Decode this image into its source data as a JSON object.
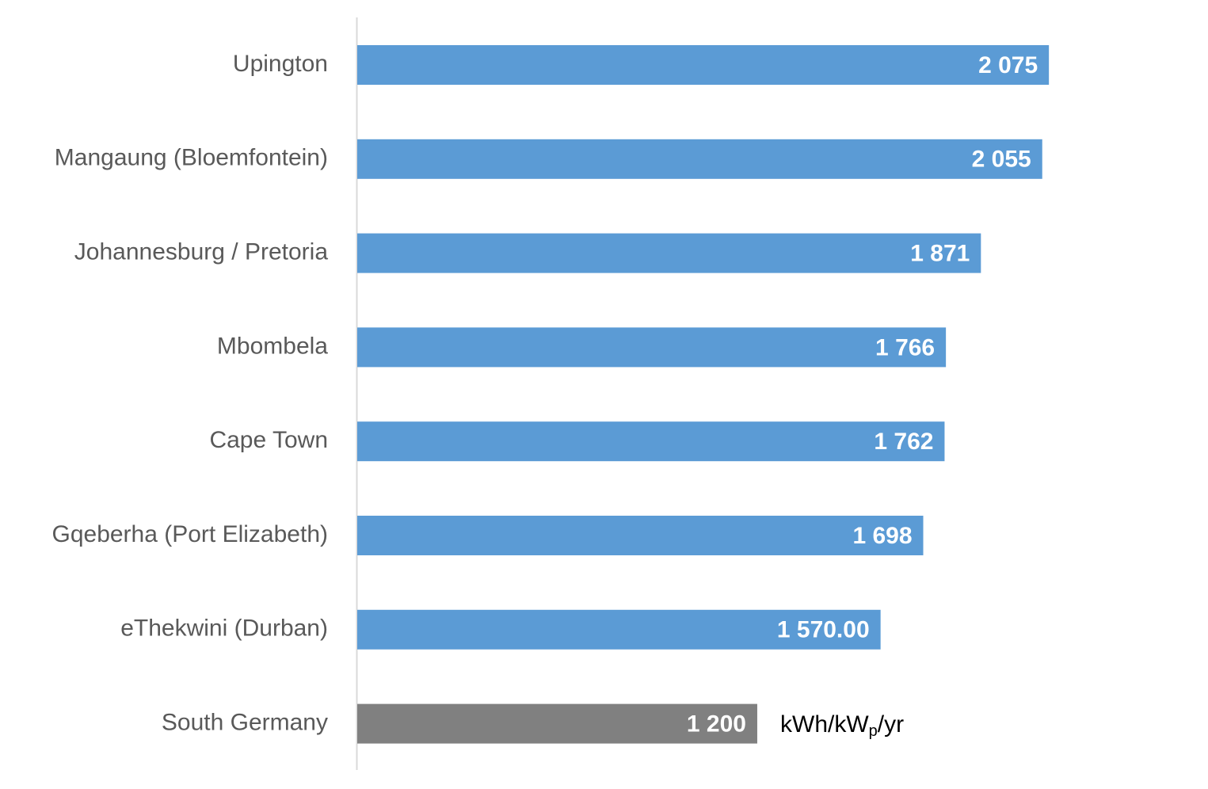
{
  "chart_data": {
    "type": "bar",
    "orientation": "horizontal",
    "categories": [
      "Upington",
      "Mangaung (Bloemfontein)",
      "Johannesburg / Pretoria",
      "Mbombela",
      "Cape Town",
      "Gqeberha (Port Elizabeth)",
      "eThekwini (Durban)",
      "South Germany"
    ],
    "values": [
      2075,
      2055,
      1871,
      1766,
      1762,
      1698,
      1570,
      1200
    ],
    "value_labels": [
      "2 075",
      "2 055",
      "1 871",
      "1 766",
      "1 762",
      "1 698",
      "1 570.00",
      "1 200"
    ],
    "colors": [
      "#5b9bd5",
      "#5b9bd5",
      "#5b9bd5",
      "#5b9bd5",
      "#5b9bd5",
      "#5b9bd5",
      "#5b9bd5",
      "#808080"
    ],
    "xlim": [
      0,
      2500
    ],
    "annotation": [
      "kWh/kW",
      "p",
      "/yr"
    ]
  }
}
